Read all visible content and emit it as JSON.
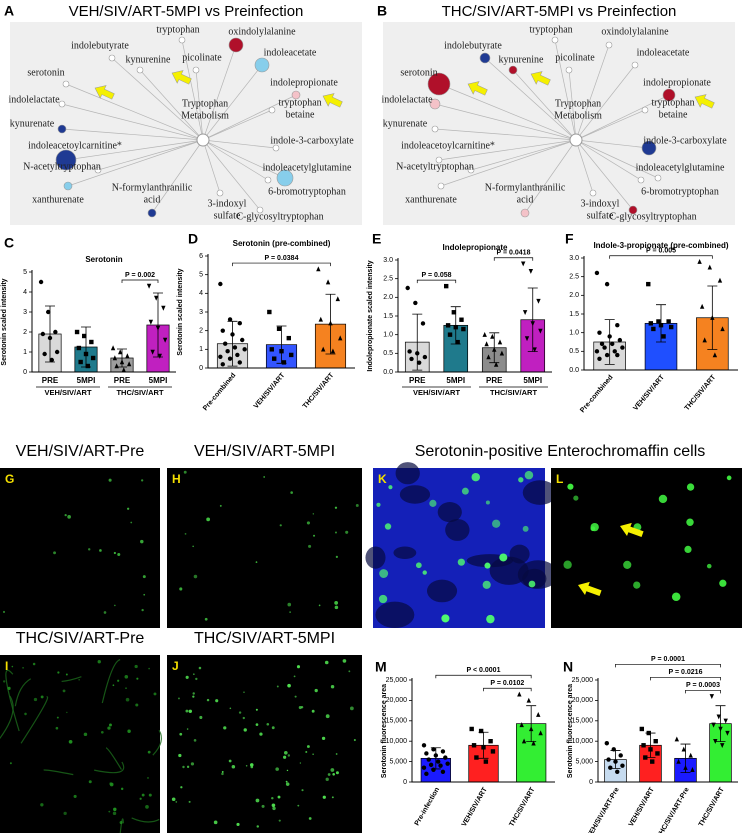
{
  "networks": [
    {
      "letter": "A",
      "title": "VEH/SIV/ART-5MPI vs Preinfection",
      "center_label": [
        "Tryptophan",
        "Metabolism"
      ],
      "nodes": [
        {
          "label": [
            "indolebutyrate"
          ],
          "color": "#ffffff"
        },
        {
          "label": [
            "tryptophan"
          ],
          "color": "#ffffff"
        },
        {
          "label": [
            "oxindolylalanine"
          ],
          "color": "#b0102a"
        },
        {
          "label": [
            "picolinate"
          ],
          "color": "#ffffff"
        },
        {
          "label": [
            "kynurenine"
          ],
          "color": "#ffffff"
        },
        {
          "label": [
            "indoleacetate"
          ],
          "color": "#87ceeb"
        },
        {
          "label": [
            "serotonin"
          ],
          "color": "#ffffff"
        },
        {
          "label": [
            "indolelactate"
          ],
          "color": "#ffffff"
        },
        {
          "label": [
            "indolepropionate"
          ],
          "color": "#f4c2c8"
        },
        {
          "label": [
            "tryptophan",
            "betaine"
          ],
          "color": "#ffffff"
        },
        {
          "label": [
            "kynurenate"
          ],
          "color": "#1f3a93"
        },
        {
          "label": [
            "indoleacetoylcarnitine*"
          ],
          "color": "#1f3a93"
        },
        {
          "label": [
            "indole-3-carboxylate"
          ],
          "color": "#ffffff"
        },
        {
          "label": [
            "N-acetyltryptophan"
          ],
          "color": "#ffffff"
        },
        {
          "label": [
            "indoleacetylglutamine"
          ],
          "color": "#87ceeb"
        },
        {
          "label": [
            "N-formylanthranilic",
            "acid"
          ],
          "color": "#1f3a93"
        },
        {
          "label": [
            "xanthurenate"
          ],
          "color": "#87ceeb"
        },
        {
          "label": [
            "6-bromotryptophan"
          ],
          "color": "#ffffff"
        },
        {
          "label": [
            "3-indoxyl",
            "sulfate"
          ],
          "color": "#ffffff"
        },
        {
          "label": [
            "C-glycosyltryptophan"
          ],
          "color": "#ffffff"
        }
      ]
    },
    {
      "letter": "B",
      "title": "THC/SIV/ART-5MPI vs Preinfection",
      "center_label": [
        "Tryptophan",
        "Metabolism"
      ],
      "nodes": [
        {
          "label": [
            "indolebutyrate"
          ],
          "color": "#1f3a93"
        },
        {
          "label": [
            "tryptophan"
          ],
          "color": "#ffffff"
        },
        {
          "label": [
            "oxindolylalanine"
          ],
          "color": "#ffffff"
        },
        {
          "label": [
            "picolinate"
          ],
          "color": "#ffffff"
        },
        {
          "label": [
            "kynurenine"
          ],
          "color": "#b0102a"
        },
        {
          "label": [
            "indoleacetate"
          ],
          "color": "#ffffff"
        },
        {
          "label": [
            "serotonin"
          ],
          "color": "#b0102a"
        },
        {
          "label": [
            "indolelactate"
          ],
          "color": "#f4c2c8"
        },
        {
          "label": [
            "indolepropionate"
          ],
          "color": "#b0102a"
        },
        {
          "label": [
            "tryptophan",
            "betaine"
          ],
          "color": "#ffffff"
        },
        {
          "label": [
            "kynurenate"
          ],
          "color": "#ffffff"
        },
        {
          "label": [
            "indoleacetoylcarnitine*"
          ],
          "color": "#ffffff"
        },
        {
          "label": [
            "indole-3-carboxylate"
          ],
          "color": "#1f3a93"
        },
        {
          "label": [
            "N-acetyltryptophan"
          ],
          "color": "#ffffff"
        },
        {
          "label": [
            "indoleacetylglutamine"
          ],
          "color": "#ffffff"
        },
        {
          "label": [
            "N-formylanthranilic",
            "acid"
          ],
          "color": "#f4c2c8"
        },
        {
          "label": [
            "xanthurenate"
          ],
          "color": "#ffffff"
        },
        {
          "label": [
            "6-bromotryptophan"
          ],
          "color": "#ffffff"
        },
        {
          "label": [
            "3-indoxyl",
            "sulfate"
          ],
          "color": "#ffffff"
        },
        {
          "label": [
            "C-glycosyltryptophan"
          ],
          "color": "#b0102a"
        }
      ]
    }
  ],
  "charts": [
    {
      "letter": "C",
      "type": "bar",
      "title": "Serotonin",
      "ylabel": "Serotonin scaled intensity",
      "categories": [
        "PRE",
        "5MPI",
        "PRE",
        "5MPI"
      ],
      "groups": [
        "VEH/SIV/ART",
        "THC/SIV/ART"
      ],
      "colors": [
        "#d9d9d9",
        "#1f7a8c",
        "#9e9e9e",
        "#c020c0"
      ],
      "values": [
        1.9,
        1.25,
        0.7,
        2.35
      ],
      "errors": [
        1.4,
        1.0,
        0.45,
        1.6
      ],
      "points": [
        [
          4.5,
          3.0,
          2.0,
          1.9,
          1.7,
          1.0,
          0.9,
          0.6
        ],
        [
          2.0,
          1.8,
          1.5,
          1.2,
          0.9,
          0.7,
          0.5,
          0.3
        ],
        [
          1.2,
          1.0,
          0.8,
          0.7,
          0.5,
          0.4,
          0.3,
          0.1
        ],
        [
          4.3,
          3.7,
          3.2,
          2.5,
          2.2,
          1.6,
          1.0,
          0.8
        ]
      ],
      "ylim": [
        0,
        5
      ],
      "yticks": [
        0,
        1,
        2,
        3,
        4,
        5
      ],
      "annotations": [
        {
          "label": "P = 0.002",
          "from": 2,
          "to": 3
        }
      ]
    },
    {
      "letter": "D",
      "type": "bar",
      "title": "Serotonin (pre-combined)",
      "ylabel": "Serotonin scaled intensity",
      "categories": [
        "Pre-combined",
        "VEH/SIV/ART",
        "THC/SIV/ART"
      ],
      "colors": [
        "#d9d9d9",
        "#3355ff",
        "#f58220"
      ],
      "values": [
        1.3,
        1.25,
        2.35
      ],
      "errors": [
        1.2,
        1.0,
        1.6
      ],
      "points": [
        [
          4.5,
          2.6,
          2.4,
          2.0,
          1.8,
          1.5,
          1.3,
          1.1,
          1.0,
          0.9,
          0.7,
          0.6,
          0.5,
          0.3,
          0.2
        ],
        [
          3.0,
          2.1,
          1.6,
          1.0,
          0.9,
          0.7,
          0.5,
          0.3
        ],
        [
          5.3,
          4.6,
          3.7,
          2.6,
          2.4,
          1.6,
          1.0,
          0.9
        ]
      ],
      "ylim": [
        0,
        6
      ],
      "yticks": [
        0,
        1,
        2,
        3,
        4,
        5,
        6
      ],
      "annotations": [
        {
          "label": "P = 0.0384",
          "from": 0,
          "to": 2
        }
      ]
    },
    {
      "letter": "E",
      "type": "bar",
      "title": "Indolepropionate",
      "ylabel": "Indolepropionate scaled intensity",
      "categories": [
        "PRE",
        "5MPI",
        "PRE",
        "5MPI"
      ],
      "groups": [
        "VEH/SIV/ART",
        "THC/SIV/ART"
      ],
      "colors": [
        "#d9d9d9",
        "#1f7a8c",
        "#8c8c8c",
        "#c020c0"
      ],
      "values": [
        0.8,
        1.25,
        0.65,
        1.4
      ],
      "errors": [
        0.75,
        0.5,
        0.4,
        0.85
      ],
      "points": [
        [
          2.25,
          1.85,
          1.3,
          0.55,
          0.5,
          0.4,
          0.35,
          0.25
        ],
        [
          2.3,
          1.6,
          1.4,
          1.25,
          1.2,
          1.15,
          1.0,
          0.8
        ],
        [
          1.0,
          0.95,
          0.8,
          0.75,
          0.6,
          0.5,
          0.4,
          0.2
        ],
        [
          2.9,
          2.7,
          1.9,
          1.6,
          1.3,
          1.1,
          0.9,
          0.6
        ]
      ],
      "ylim": [
        0,
        3
      ],
      "yticks": [
        {
          "value": 0,
          "label": "0.0"
        },
        {
          "value": 0.5,
          "label": "0.5"
        },
        {
          "value": 1,
          "label": "1.0"
        },
        {
          "value": 1.5,
          "label": "1.5"
        },
        {
          "value": 2,
          "label": "2.0"
        },
        {
          "value": 2.5,
          "label": "2.5"
        },
        {
          "value": 3,
          "label": "3.0"
        }
      ],
      "annotations": [
        {
          "label": "P = 0.058",
          "from": 0,
          "to": 1
        },
        {
          "label": "P = 0.0418",
          "from": 2,
          "to": 3
        }
      ]
    },
    {
      "letter": "F",
      "type": "bar",
      "title": "Indole-3-propionate (pre-combined)",
      "categories": [
        "Pre-combined",
        "VEH/SIV/ART",
        "THC/SIV/ART"
      ],
      "colors": [
        "#d9d9d9",
        "#1f4fff",
        "#f58220"
      ],
      "values": [
        0.75,
        1.25,
        1.4
      ],
      "errors": [
        0.6,
        0.5,
        0.85
      ],
      "points": [
        [
          2.6,
          2.3,
          1.2,
          1.0,
          0.9,
          0.8,
          0.7,
          0.7,
          0.6,
          0.6,
          0.5,
          0.5,
          0.4,
          0.4,
          0.3
        ],
        [
          2.3,
          1.3,
          1.3,
          1.25,
          1.2,
          1.15,
          1.1,
          0.9
        ],
        [
          2.9,
          2.75,
          2.4,
          1.7,
          1.4,
          1.1,
          0.8,
          0.4
        ]
      ],
      "ylim": [
        0,
        3
      ],
      "yticks": [
        {
          "value": 0,
          "label": "0.0"
        },
        {
          "value": 0.5,
          "label": "0.5"
        },
        {
          "value": 1,
          "label": "1.0"
        },
        {
          "value": 1.5,
          "label": "1.5"
        },
        {
          "value": 2,
          "label": "2.0"
        },
        {
          "value": 2.5,
          "label": "2.5"
        },
        {
          "value": 3,
          "label": "3.0"
        }
      ],
      "annotations": [
        {
          "label": "P = 0.005",
          "from": 0,
          "to": 2
        }
      ]
    },
    {
      "letter": "M",
      "type": "bar",
      "ylabel": "Serotonin fluorescence area",
      "categories": [
        "Pre-infection",
        "VEH/SIV/ART",
        "THC/SIV/ART"
      ],
      "colors": [
        "#1a1aff",
        "#ff2020",
        "#33ee33"
      ],
      "values": [
        5800,
        9000,
        14300
      ],
      "errors": [
        2600,
        3200,
        4400
      ],
      "points": [
        [
          9000,
          8000,
          7500,
          7000,
          6500,
          6000,
          5500,
          5000,
          4500,
          4200,
          4000,
          3500,
          3000,
          2500,
          2000
        ],
        [
          13000,
          12500,
          10000,
          9000,
          8500,
          7500,
          6000,
          5000
        ],
        [
          21500,
          20000,
          16500,
          14000,
          13000,
          12000,
          10000,
          9500
        ]
      ],
      "ylim": [
        0,
        25000
      ],
      "yticks": [
        0,
        {
          "value": 5000,
          "label": "5,000"
        },
        {
          "value": 10000,
          "label": "10,000"
        },
        {
          "value": 15000,
          "label": "15,000"
        },
        {
          "value": 20000,
          "label": "20,000"
        },
        {
          "value": 25000,
          "label": "25,000"
        }
      ],
      "annotations": [
        {
          "label": "P < 0.0001",
          "from": 0,
          "to": 2
        },
        {
          "label": "P = 0.0102",
          "from": 1,
          "to": 2
        }
      ]
    },
    {
      "letter": "N",
      "type": "bar",
      "ylabel": "Serotonin fluorescence area",
      "categories": [
        "VEH/SIV/ART-Pre",
        "VEH/SIV/ART",
        "THC/SIV/ART-Pre",
        "THC/SIV/ART"
      ],
      "colors": [
        "#c6dbef",
        "#ff2020",
        "#1a1aff",
        "#33ee33"
      ],
      "values": [
        5500,
        9000,
        5800,
        14300
      ],
      "errors": [
        2200,
        3000,
        3500,
        4400
      ],
      "points": [
        [
          9500,
          8000,
          6500,
          5500,
          5000,
          4000,
          3500,
          2500
        ],
        [
          13000,
          12000,
          10000,
          9000,
          8000,
          7000,
          6000,
          5000
        ],
        [
          10500,
          8000,
          6500,
          5000,
          3500,
          3000
        ],
        [
          21000,
          16000,
          15000,
          14000,
          13000,
          12000,
          10000,
          9000
        ]
      ],
      "ylim": [
        0,
        25000
      ],
      "yticks": [
        0,
        {
          "value": 5000,
          "label": "5,000"
        },
        {
          "value": 10000,
          "label": "10,000"
        },
        {
          "value": 15000,
          "label": "15,000"
        },
        {
          "value": 20000,
          "label": "20,000"
        },
        {
          "value": 25000,
          "label": "25,000"
        }
      ],
      "annotations": [
        {
          "label": "P = 0.0001",
          "from": 0,
          "to": 3
        },
        {
          "label": "P = 0.0216",
          "from": 1,
          "to": 3
        },
        {
          "label": "P = 0.0003",
          "from": 2,
          "to": 3
        }
      ]
    }
  ],
  "micrographs": {
    "heading": "Serotonin-positive Enterochromaffin cells",
    "panels": [
      {
        "letter": "G",
        "title": "VEH/SIV/ART-Pre"
      },
      {
        "letter": "H",
        "title": "VEH/SIV/ART-5MPI"
      },
      {
        "letter": "I",
        "title": "THC/SIV/ART-Pre"
      },
      {
        "letter": "J",
        "title": "THC/SIV/ART-5MPI"
      },
      {
        "letter": "K"
      },
      {
        "letter": "L"
      }
    ]
  }
}
